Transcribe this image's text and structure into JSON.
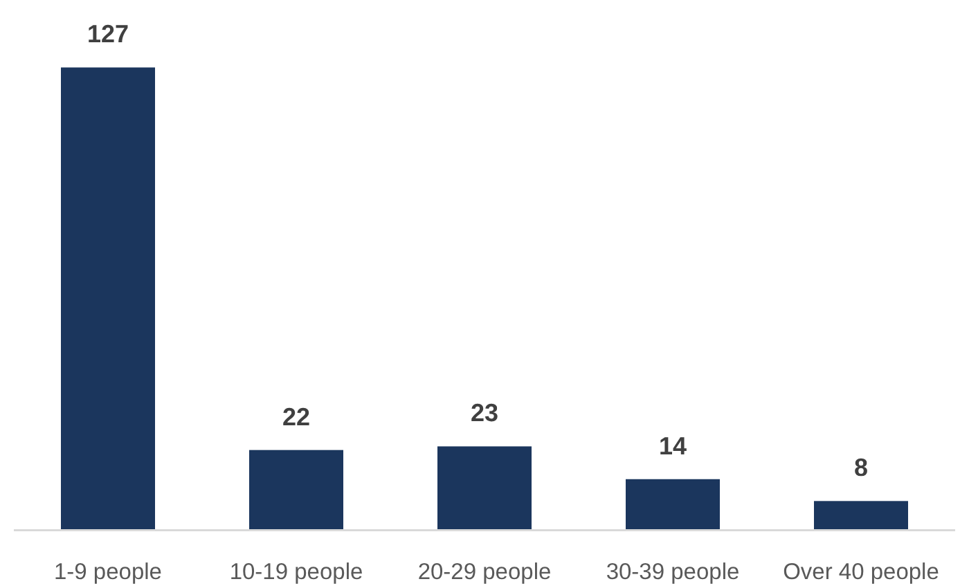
{
  "chart_data": {
    "type": "bar",
    "categories": [
      "1-9 people",
      "10-19 people",
      "20-29 people",
      "30-39 people",
      "Over 40 people"
    ],
    "values": [
      127,
      22,
      23,
      14,
      8
    ],
    "color": "#1b365d",
    "data_labels": true
  }
}
